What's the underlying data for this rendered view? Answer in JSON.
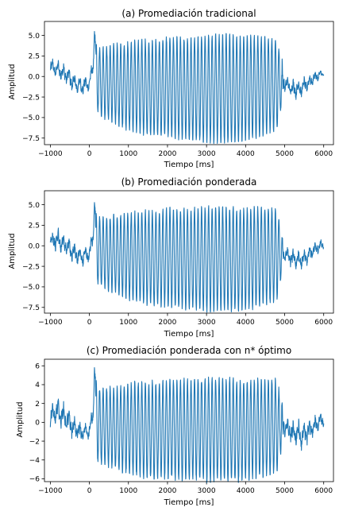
{
  "chart_data": [
    {
      "type": "line",
      "title": "(a) Promediación tradicional",
      "xlabel": "Tiempo [ms]",
      "ylabel": "Amplitud",
      "xlim": [
        -1150,
        6250
      ],
      "ylim": [
        -8.3,
        6.7
      ],
      "xticks": [
        -1000,
        0,
        1000,
        2000,
        3000,
        4000,
        5000,
        6000
      ],
      "xtick_labels": [
        "−1000",
        "0",
        "1000",
        "2000",
        "3000",
        "4000",
        "5000",
        "6000"
      ],
      "yticks": [
        5.0,
        2.5,
        0.0,
        -2.5,
        -5.0,
        -7.5
      ],
      "ytick_labels": [
        "5.0",
        "2.5",
        "0.0",
        "−2.5",
        "−5.0",
        "−7.5"
      ],
      "grid": false,
      "color": "#1f77b4",
      "series": [
        {
          "x": [
            -1000,
            -800,
            -600,
            -400,
            -200,
            0,
            100,
            130,
            200,
            400,
            600,
            800,
            1000,
            1200,
            1400,
            1600,
            1800,
            2000,
            2200,
            2400,
            2600,
            2800,
            3000,
            3200,
            3400,
            3600,
            3800,
            4000,
            4200,
            4400,
            4600,
            4800,
            5000,
            5200,
            5400,
            5600,
            5800,
            6000
          ],
          "center": [
            1.2,
            0.8,
            0.3,
            -0.8,
            -1.2,
            -0.9,
            1.5,
            5.5,
            -0.5,
            -0.8,
            -0.8,
            -1.0,
            -1.2,
            -1.2,
            -1.3,
            -1.4,
            -1.4,
            -1.3,
            -1.4,
            -1.5,
            -1.5,
            -1.4,
            -1.5,
            -1.5,
            -1.4,
            -1.5,
            -1.6,
            -1.4,
            -1.3,
            -1.2,
            -1.1,
            -0.9,
            -0.8,
            -1.5,
            -1.5,
            -0.8,
            0.0,
            0.4
          ],
          "amplitude": [
            0.9,
            1.0,
            1.0,
            1.1,
            1.0,
            0.8,
            1.0,
            0.3,
            3.8,
            4.3,
            4.6,
            5.0,
            5.3,
            5.5,
            5.7,
            5.8,
            5.9,
            6.0,
            6.1,
            6.2,
            6.2,
            6.3,
            6.4,
            6.5,
            6.5,
            6.5,
            6.4,
            6.3,
            6.2,
            6.0,
            5.8,
            5.6,
            0.8,
            1.0,
            1.0,
            0.8,
            0.6,
            0.4
          ],
          "period_ms": 90
        }
      ]
    },
    {
      "type": "line",
      "title": "(b) Promediación ponderada",
      "xlabel": "Tiempo [ms]",
      "ylabel": "Amplitud",
      "xlim": [
        -1150,
        6250
      ],
      "ylim": [
        -8.2,
        6.7
      ],
      "xticks": [
        -1000,
        0,
        1000,
        2000,
        3000,
        4000,
        5000,
        6000
      ],
      "xtick_labels": [
        "−1000",
        "0",
        "1000",
        "2000",
        "3000",
        "4000",
        "5000",
        "6000"
      ],
      "yticks": [
        5.0,
        2.5,
        0.0,
        -2.5,
        -5.0,
        -7.5
      ],
      "ytick_labels": [
        "5.0",
        "2.5",
        "0.0",
        "−2.5",
        "−5.0",
        "−7.5"
      ],
      "grid": false,
      "color": "#1f77b4",
      "series": [
        {
          "x": [
            -1000,
            -800,
            -600,
            -400,
            -200,
            0,
            100,
            130,
            200,
            400,
            600,
            800,
            1000,
            1200,
            1400,
            1600,
            1800,
            2000,
            2200,
            2400,
            2600,
            2800,
            3000,
            3200,
            3400,
            3600,
            3800,
            4000,
            4200,
            4400,
            4600,
            4800,
            5000,
            5200,
            5400,
            5600,
            5800,
            6000
          ],
          "center": [
            0.6,
            0.7,
            0.1,
            -0.9,
            -1.4,
            -1.0,
            1.3,
            5.4,
            -0.6,
            -0.9,
            -1.0,
            -1.1,
            -1.3,
            -1.3,
            -1.4,
            -1.5,
            -1.5,
            -1.4,
            -1.5,
            -1.6,
            -1.6,
            -1.5,
            -1.6,
            -1.6,
            -1.5,
            -1.6,
            -1.7,
            -1.6,
            -1.5,
            -1.3,
            -1.2,
            -1.0,
            -0.9,
            -1.6,
            -1.7,
            -1.1,
            -0.3,
            0.2
          ],
          "amplitude": [
            1.0,
            1.2,
            1.1,
            1.1,
            1.0,
            0.8,
            1.0,
            0.3,
            3.9,
            4.3,
            4.6,
            4.9,
            5.2,
            5.4,
            5.6,
            5.7,
            5.8,
            5.9,
            6.0,
            6.1,
            6.1,
            6.2,
            6.3,
            6.3,
            6.3,
            6.3,
            6.2,
            6.2,
            6.1,
            5.9,
            5.7,
            5.6,
            0.8,
            1.0,
            1.1,
            0.9,
            0.7,
            0.6
          ],
          "period_ms": 90
        }
      ]
    },
    {
      "type": "line",
      "title": "(c) Promediación ponderada con n* óptimo",
      "xlabel": "Tiempo [ms]",
      "ylabel": "Amplitud",
      "xlim": [
        -1150,
        6250
      ],
      "ylim": [
        -6.3,
        6.7
      ],
      "xticks": [
        -1000,
        0,
        1000,
        2000,
        3000,
        4000,
        5000,
        6000
      ],
      "xtick_labels": [
        "−1000",
        "0",
        "1000",
        "2000",
        "3000",
        "4000",
        "5000",
        "6000"
      ],
      "yticks": [
        6,
        4,
        2,
        0,
        -2,
        -4,
        -6
      ],
      "ytick_labels": [
        "6",
        "4",
        "2",
        "0",
        "−2",
        "−4",
        "−6"
      ],
      "grid": false,
      "color": "#1f77b4",
      "series": [
        {
          "x": [
            -1000,
            -800,
            -600,
            -400,
            -200,
            0,
            100,
            130,
            200,
            400,
            600,
            800,
            1000,
            1200,
            1400,
            1600,
            1800,
            2000,
            2200,
            2400,
            2600,
            2800,
            3000,
            3200,
            3400,
            3600,
            3800,
            4000,
            4200,
            4400,
            4600,
            4800,
            5000,
            5200,
            5400,
            5600,
            5800,
            6000
          ],
          "center": [
            0.5,
            1.3,
            0.3,
            -0.6,
            -1.1,
            -0.9,
            1.2,
            5.8,
            -0.3,
            -0.5,
            -0.5,
            -0.6,
            -0.7,
            -0.7,
            -0.8,
            -0.8,
            -0.8,
            -0.7,
            -0.8,
            -0.8,
            -0.8,
            -0.7,
            -0.8,
            -0.8,
            -0.7,
            -0.8,
            -0.9,
            -0.8,
            -0.7,
            -0.6,
            -0.5,
            -0.4,
            -0.3,
            -1.1,
            -1.4,
            -1.0,
            -0.2,
            0.3
          ],
          "amplitude": [
            1.2,
            1.4,
            1.2,
            1.1,
            1.0,
            0.8,
            1.0,
            0.3,
            3.8,
            4.1,
            4.3,
            4.5,
            4.7,
            4.9,
            5.0,
            5.1,
            5.1,
            5.2,
            5.2,
            5.3,
            5.3,
            5.3,
            5.4,
            5.4,
            5.4,
            5.4,
            5.3,
            5.3,
            5.2,
            5.1,
            5.0,
            4.9,
            1.0,
            1.2,
            1.3,
            1.1,
            0.8,
            0.6
          ],
          "period_ms": 90
        }
      ]
    }
  ]
}
